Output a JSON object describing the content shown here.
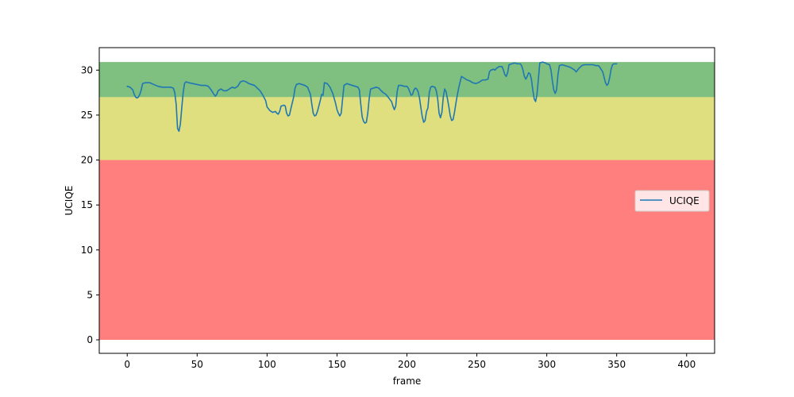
{
  "chart_data": {
    "type": "line",
    "title": "",
    "xlabel": "frame",
    "ylabel": "UCIQE",
    "xlim": [
      -20,
      420
    ],
    "ylim": [
      -1.5,
      32.5
    ],
    "x_ticks": [
      0,
      50,
      100,
      150,
      200,
      250,
      300,
      350,
      400
    ],
    "y_ticks": [
      0,
      5,
      10,
      15,
      20,
      25,
      30
    ],
    "grid": false,
    "legend": {
      "placement": "center-right",
      "entries": [
        "UCIQE"
      ]
    },
    "bands": [
      {
        "y0": 0,
        "y1": 20,
        "color": "#ff0000",
        "alpha": 0.5
      },
      {
        "y0": 20,
        "y1": 27,
        "color": "#bfbf00",
        "alpha": 0.5
      },
      {
        "y0": 27,
        "y1": 30.9,
        "color": "#008000",
        "alpha": 0.5
      }
    ],
    "series": [
      {
        "name": "UCIQE",
        "color": "#1f77b4",
        "points": [
          [
            0,
            28.2
          ],
          [
            2,
            28.1
          ],
          [
            4,
            27.8
          ],
          [
            5,
            27.3
          ],
          [
            6,
            27.0
          ],
          [
            7,
            26.9
          ],
          [
            8,
            27.0
          ],
          [
            9,
            27.3
          ],
          [
            10,
            27.8
          ],
          [
            11,
            28.5
          ],
          [
            13,
            28.6
          ],
          [
            16,
            28.6
          ],
          [
            19,
            28.4
          ],
          [
            22,
            28.2
          ],
          [
            25,
            28.1
          ],
          [
            28,
            28.1
          ],
          [
            31,
            28.1
          ],
          [
            33,
            28.0
          ],
          [
            34,
            27.5
          ],
          [
            35,
            26.2
          ],
          [
            36,
            23.5
          ],
          [
            37,
            23.2
          ],
          [
            38,
            24.0
          ],
          [
            39,
            25.8
          ],
          [
            40,
            27.5
          ],
          [
            41,
            28.5
          ],
          [
            42,
            28.7
          ],
          [
            44,
            28.6
          ],
          [
            47,
            28.5
          ],
          [
            50,
            28.4
          ],
          [
            53,
            28.3
          ],
          [
            56,
            28.3
          ],
          [
            58,
            28.2
          ],
          [
            60,
            27.8
          ],
          [
            62,
            27.3
          ],
          [
            63,
            27.1
          ],
          [
            64,
            27.3
          ],
          [
            65,
            27.7
          ],
          [
            67,
            27.9
          ],
          [
            69,
            27.7
          ],
          [
            71,
            27.7
          ],
          [
            73,
            27.9
          ],
          [
            75,
            28.1
          ],
          [
            77,
            28.0
          ],
          [
            79,
            28.2
          ],
          [
            81,
            28.7
          ],
          [
            83,
            28.8
          ],
          [
            85,
            28.7
          ],
          [
            87,
            28.5
          ],
          [
            89,
            28.4
          ],
          [
            91,
            28.3
          ],
          [
            93,
            28.0
          ],
          [
            95,
            27.7
          ],
          [
            97,
            27.2
          ],
          [
            99,
            26.6
          ],
          [
            100,
            25.9
          ],
          [
            102,
            25.5
          ],
          [
            104,
            25.3
          ],
          [
            106,
            25.4
          ],
          [
            107,
            25.2
          ],
          [
            108,
            25.1
          ],
          [
            109,
            25.4
          ],
          [
            110,
            26.0
          ],
          [
            112,
            26.1
          ],
          [
            113,
            26.0
          ],
          [
            114,
            25.2
          ],
          [
            115,
            24.9
          ],
          [
            116,
            25.0
          ],
          [
            117,
            25.7
          ],
          [
            119,
            27.0
          ],
          [
            120,
            28.0
          ],
          [
            121,
            28.4
          ],
          [
            123,
            28.5
          ],
          [
            125,
            28.4
          ],
          [
            127,
            28.3
          ],
          [
            129,
            28.1
          ],
          [
            131,
            27.3
          ],
          [
            132,
            26.2
          ],
          [
            133,
            25.2
          ],
          [
            134,
            24.9
          ],
          [
            135,
            25.0
          ],
          [
            136,
            25.4
          ],
          [
            138,
            26.6
          ],
          [
            139,
            27.3
          ],
          [
            140,
            27.2
          ],
          [
            141,
            28.6
          ],
          [
            143,
            28.5
          ],
          [
            145,
            28.1
          ],
          [
            147,
            27.4
          ],
          [
            149,
            26.3
          ],
          [
            150,
            25.6
          ],
          [
            151,
            25.2
          ],
          [
            152,
            24.9
          ],
          [
            153,
            25.2
          ],
          [
            154,
            26.8
          ],
          [
            155,
            28.3
          ],
          [
            157,
            28.5
          ],
          [
            159,
            28.4
          ],
          [
            161,
            28.3
          ],
          [
            163,
            28.2
          ],
          [
            165,
            28.1
          ],
          [
            166,
            27.8
          ],
          [
            167,
            26.2
          ],
          [
            168,
            24.8
          ],
          [
            169,
            24.3
          ],
          [
            170,
            24.1
          ],
          [
            171,
            24.2
          ],
          [
            172,
            25.2
          ],
          [
            173,
            26.8
          ],
          [
            174,
            27.9
          ],
          [
            176,
            28.0
          ],
          [
            178,
            28.1
          ],
          [
            180,
            28.0
          ],
          [
            181,
            27.8
          ],
          [
            183,
            27.5
          ],
          [
            185,
            27.3
          ],
          [
            187,
            26.9
          ],
          [
            189,
            26.5
          ],
          [
            190,
            26.0
          ],
          [
            191,
            25.6
          ],
          [
            192,
            26.0
          ],
          [
            193,
            27.6
          ],
          [
            194,
            28.3
          ],
          [
            196,
            28.3
          ],
          [
            198,
            28.2
          ],
          [
            200,
            28.2
          ],
          [
            201,
            28.0
          ],
          [
            202,
            27.6
          ],
          [
            203,
            27.2
          ],
          [
            204,
            27.3
          ],
          [
            205,
            27.8
          ],
          [
            206,
            28.0
          ],
          [
            207,
            27.9
          ],
          [
            208,
            27.6
          ],
          [
            209,
            26.9
          ],
          [
            210,
            25.8
          ],
          [
            211,
            24.8
          ],
          [
            212,
            24.2
          ],
          [
            213,
            24.4
          ],
          [
            214,
            25.4
          ],
          [
            215,
            25.8
          ],
          [
            216,
            27.5
          ],
          [
            217,
            28.1
          ],
          [
            218,
            28.2
          ],
          [
            220,
            28.1
          ],
          [
            221,
            27.7
          ],
          [
            222,
            26.8
          ],
          [
            223,
            25.2
          ],
          [
            224,
            24.7
          ],
          [
            225,
            25.3
          ],
          [
            226,
            27.0
          ],
          [
            227,
            27.9
          ],
          [
            228,
            27.6
          ],
          [
            229,
            26.8
          ],
          [
            230,
            25.9
          ],
          [
            231,
            24.9
          ],
          [
            232,
            24.4
          ],
          [
            233,
            24.5
          ],
          [
            234,
            25.3
          ],
          [
            235,
            26.3
          ],
          [
            236,
            27.2
          ],
          [
            237,
            28.0
          ],
          [
            239,
            29.3
          ],
          [
            241,
            29.1
          ],
          [
            243,
            28.9
          ],
          [
            245,
            28.8
          ],
          [
            247,
            28.6
          ],
          [
            249,
            28.5
          ],
          [
            251,
            28.6
          ],
          [
            253,
            28.8
          ],
          [
            254,
            28.9
          ],
          [
            256,
            28.9
          ],
          [
            258,
            29.0
          ],
          [
            259,
            29.8
          ],
          [
            260,
            30.0
          ],
          [
            262,
            30.1
          ],
          [
            263,
            30.0
          ],
          [
            264,
            30.2
          ],
          [
            266,
            30.4
          ],
          [
            268,
            30.4
          ],
          [
            269,
            30.0
          ],
          [
            270,
            29.5
          ],
          [
            271,
            29.3
          ],
          [
            272,
            29.7
          ],
          [
            273,
            30.6
          ],
          [
            275,
            30.7
          ],
          [
            277,
            30.8
          ],
          [
            279,
            30.7
          ],
          [
            281,
            30.7
          ],
          [
            282,
            30.5
          ],
          [
            283,
            30.0
          ],
          [
            284,
            29.3
          ],
          [
            285,
            29.0
          ],
          [
            286,
            29.3
          ],
          [
            287,
            29.7
          ],
          [
            288,
            29.6
          ],
          [
            289,
            29.0
          ],
          [
            290,
            27.8
          ],
          [
            291,
            26.8
          ],
          [
            292,
            26.5
          ],
          [
            293,
            27.3
          ],
          [
            294,
            29.0
          ],
          [
            295,
            30.8
          ],
          [
            297,
            30.9
          ],
          [
            299,
            30.8
          ],
          [
            300,
            30.7
          ],
          [
            302,
            30.6
          ],
          [
            303,
            30.0
          ],
          [
            304,
            28.8
          ],
          [
            305,
            27.8
          ],
          [
            306,
            27.4
          ],
          [
            307,
            27.8
          ],
          [
            308,
            29.5
          ],
          [
            309,
            30.5
          ],
          [
            311,
            30.6
          ],
          [
            313,
            30.5
          ],
          [
            315,
            30.4
          ],
          [
            317,
            30.3
          ],
          [
            319,
            30.1
          ],
          [
            320,
            30.0
          ],
          [
            321,
            29.8
          ],
          [
            323,
            30.2
          ],
          [
            325,
            30.5
          ],
          [
            327,
            30.6
          ],
          [
            329,
            30.6
          ],
          [
            331,
            30.6
          ],
          [
            333,
            30.6
          ],
          [
            335,
            30.5
          ],
          [
            337,
            30.5
          ],
          [
            338,
            30.3
          ],
          [
            340,
            29.8
          ],
          [
            341,
            29.2
          ],
          [
            342,
            28.6
          ],
          [
            343,
            28.3
          ],
          [
            344,
            28.5
          ],
          [
            345,
            29.2
          ],
          [
            346,
            30.1
          ],
          [
            347,
            30.6
          ],
          [
            348,
            30.7
          ],
          [
            350,
            30.7
          ]
        ]
      }
    ]
  }
}
